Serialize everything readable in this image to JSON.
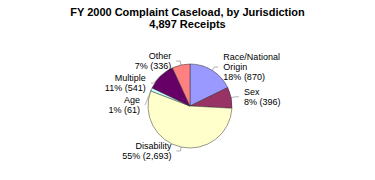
{
  "chart_data": {
    "type": "pie",
    "title": "FY 2000 Complaint Caseload, by Jurisdiction",
    "subtitle": "4,897 Receipts",
    "categories": [
      "Race/National Origin",
      "Sex",
      "Disability",
      "Age",
      "Multiple",
      "Other"
    ],
    "values": [
      870,
      396,
      2693,
      61,
      541,
      336
    ],
    "value_labels": [
      "18% (870)",
      "8% (396)",
      "55% (2,693)",
      "1% (61)",
      "11% (541)",
      "7% (336)"
    ],
    "colors": [
      "#9999ff",
      "#993366",
      "#ffffcc",
      "#ccffff",
      "#660066",
      "#ff8080"
    ],
    "data_labels": true
  }
}
